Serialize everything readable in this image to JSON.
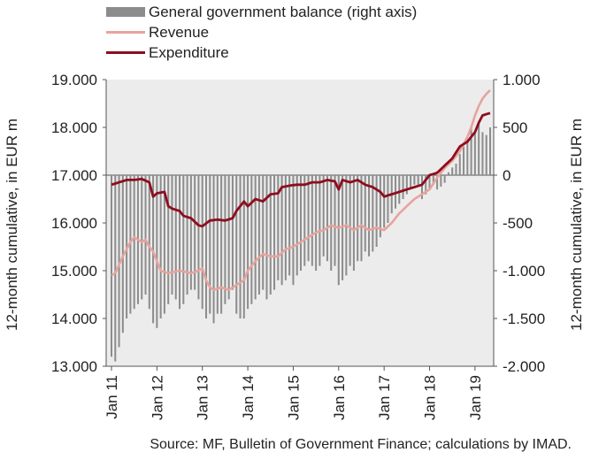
{
  "chart_data": {
    "type": "bar+line",
    "legend": [
      {
        "name": "General government balance (right axis)",
        "kind": "bar",
        "color": "#8c8c8c"
      },
      {
        "name": "Revenue",
        "kind": "line",
        "color": "#e8a39d"
      },
      {
        "name": "Expenditure",
        "kind": "line",
        "color": "#8e0d1f"
      }
    ],
    "y_left": {
      "label": "12-month cumulative, in EUR m",
      "min": 13000,
      "max": 19000,
      "ticks": [
        13000,
        14000,
        15000,
        16000,
        17000,
        18000,
        19000
      ],
      "tick_labels": [
        "13.000",
        "14.000",
        "15.000",
        "16.000",
        "17.000",
        "18.000",
        "19.000"
      ]
    },
    "y_right": {
      "label": "12-month cumulative, in EUR m",
      "min": -2000,
      "max": 1000,
      "ticks": [
        -2000,
        -1500,
        -1000,
        -500,
        0,
        500,
        1000
      ],
      "tick_labels": [
        "-2.000",
        "-1.500",
        "-1.000",
        "-500",
        "0",
        "500",
        "1.000"
      ]
    },
    "x": {
      "start": "Jan 11",
      "end": "Mar 19",
      "tick_labels": [
        "Jan 11",
        "Jan 12",
        "Jan 13",
        "Jan 14",
        "Jan 15",
        "Jan 16",
        "Jan 17",
        "Jan 18",
        "Jan 19"
      ]
    },
    "revenue_keyframes": [
      [
        0,
        14900
      ],
      [
        1,
        14950
      ],
      [
        3,
        15300
      ],
      [
        5,
        15600
      ],
      [
        6,
        15700
      ],
      [
        7,
        15650
      ],
      [
        8,
        15600
      ],
      [
        9,
        15650
      ],
      [
        10,
        15500
      ],
      [
        11,
        15400
      ],
      [
        12,
        15200
      ],
      [
        13,
        15000
      ],
      [
        15,
        14950
      ],
      [
        18,
        15000
      ],
      [
        21,
        14950
      ],
      [
        23,
        15000
      ],
      [
        24,
        15050
      ],
      [
        25,
        14800
      ],
      [
        26,
        14650
      ],
      [
        27,
        14600
      ],
      [
        29,
        14650
      ],
      [
        31,
        14600
      ],
      [
        33,
        14700
      ],
      [
        35,
        14800
      ],
      [
        36,
        15000
      ],
      [
        38,
        15200
      ],
      [
        40,
        15350
      ],
      [
        42,
        15300
      ],
      [
        44,
        15300
      ],
      [
        46,
        15450
      ],
      [
        48,
        15500
      ],
      [
        50,
        15600
      ],
      [
        52,
        15700
      ],
      [
        54,
        15800
      ],
      [
        56,
        15850
      ],
      [
        58,
        15950
      ],
      [
        60,
        15900
      ],
      [
        62,
        15950
      ],
      [
        64,
        15850
      ],
      [
        66,
        15950
      ],
      [
        68,
        15850
      ],
      [
        70,
        15900
      ],
      [
        72,
        15850
      ],
      [
        74,
        16000
      ],
      [
        76,
        16200
      ],
      [
        78,
        16350
      ],
      [
        80,
        16500
      ],
      [
        82,
        16600
      ],
      [
        84,
        16700
      ],
      [
        86,
        16950
      ],
      [
        88,
        17150
      ],
      [
        90,
        17300
      ],
      [
        92,
        17500
      ],
      [
        94,
        17800
      ],
      [
        95,
        18000
      ],
      [
        96,
        18250
      ],
      [
        97,
        18450
      ],
      [
        98,
        18600
      ],
      [
        99,
        18700
      ],
      [
        100,
        18780
      ]
    ],
    "expenditure_keyframes": [
      [
        0,
        16800
      ],
      [
        2,
        16850
      ],
      [
        4,
        16900
      ],
      [
        6,
        16900
      ],
      [
        8,
        16920
      ],
      [
        10,
        16850
      ],
      [
        11,
        16550
      ],
      [
        12,
        16620
      ],
      [
        14,
        16650
      ],
      [
        15,
        16350
      ],
      [
        16,
        16300
      ],
      [
        18,
        16250
      ],
      [
        19,
        16150
      ],
      [
        21,
        16100
      ],
      [
        23,
        15950
      ],
      [
        24,
        15930
      ],
      [
        26,
        16050
      ],
      [
        28,
        16070
      ],
      [
        30,
        16050
      ],
      [
        32,
        16100
      ],
      [
        33,
        16250
      ],
      [
        35,
        16450
      ],
      [
        36,
        16350
      ],
      [
        38,
        16500
      ],
      [
        40,
        16450
      ],
      [
        42,
        16600
      ],
      [
        44,
        16620
      ],
      [
        45,
        16750
      ],
      [
        47,
        16780
      ],
      [
        49,
        16800
      ],
      [
        51,
        16800
      ],
      [
        53,
        16850
      ],
      [
        55,
        16850
      ],
      [
        57,
        16900
      ],
      [
        59,
        16870
      ],
      [
        60,
        16700
      ],
      [
        61,
        16900
      ],
      [
        63,
        16850
      ],
      [
        65,
        16900
      ],
      [
        67,
        16800
      ],
      [
        69,
        16750
      ],
      [
        71,
        16650
      ],
      [
        72,
        16550
      ],
      [
        74,
        16600
      ],
      [
        76,
        16650
      ],
      [
        78,
        16700
      ],
      [
        80,
        16750
      ],
      [
        82,
        16800
      ],
      [
        84,
        17000
      ],
      [
        86,
        17050
      ],
      [
        88,
        17200
      ],
      [
        90,
        17350
      ],
      [
        92,
        17600
      ],
      [
        94,
        17700
      ],
      [
        96,
        17900
      ],
      [
        97,
        18100
      ],
      [
        98,
        18250
      ],
      [
        100,
        18300
      ]
    ],
    "balance_values": [
      -1900,
      -1950,
      -1800,
      -1650,
      -1500,
      -1450,
      -1400,
      -1350,
      -1300,
      -1250,
      -1400,
      -1550,
      -1600,
      -1500,
      -1450,
      -1350,
      -1250,
      -1300,
      -1400,
      -1350,
      -1250,
      -1200,
      -1200,
      -1300,
      -1400,
      -1500,
      -1450,
      -1550,
      -1450,
      -1450,
      -1350,
      -1300,
      -1200,
      -1450,
      -1500,
      -1500,
      -1400,
      -1350,
      -1300,
      -1250,
      -1200,
      -1300,
      -1250,
      -1200,
      -1100,
      -1150,
      -1100,
      -1050,
      -1150,
      -1050,
      -1000,
      -950,
      -900,
      -950,
      -1000,
      -950,
      -850,
      -900,
      -1000,
      -950,
      -1150,
      -1100,
      -1050,
      -950,
      -1000,
      -900,
      -900,
      -800,
      -850,
      -800,
      -750,
      -650,
      -550,
      -500,
      -400,
      -350,
      -300,
      -250,
      -200,
      -150,
      -100,
      -100,
      -250,
      -200,
      -150,
      -100,
      -150,
      -120,
      -80,
      30,
      80,
      120,
      220,
      300,
      380,
      500,
      460,
      540,
      450,
      420,
      500
    ]
  },
  "legend": {
    "balance_label": "General government balance (right axis)",
    "revenue_label": "Revenue",
    "expenditure_label": "Expenditure"
  },
  "axis": {
    "left_label": "12-month cumulative, in EUR m",
    "right_label": "12-month cumulative, in EUR m"
  },
  "source": "Source: MF, Bulletin of Government Finance; calculations by IMAD."
}
